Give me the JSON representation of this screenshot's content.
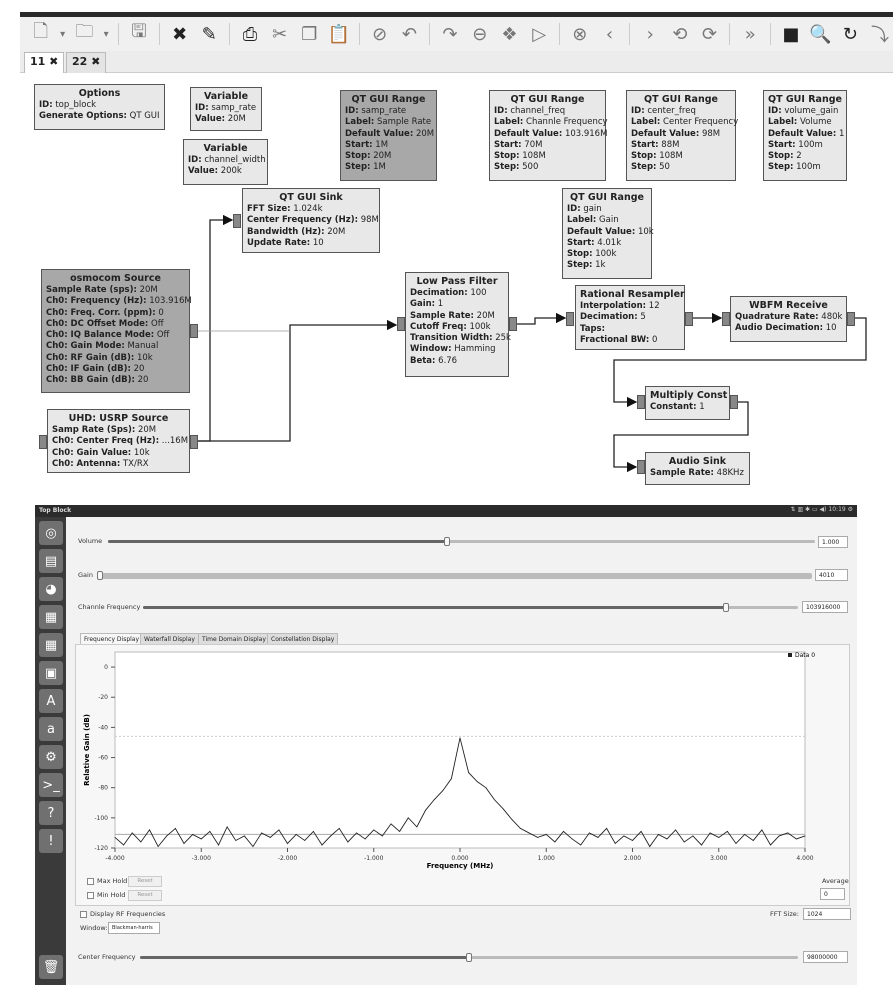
{
  "toolbar": {
    "icons": [
      "new-file-icon",
      "dropdown-icon",
      "open-folder-icon",
      "dropdown-icon",
      "save-icon",
      "close-icon",
      "edit-pencil-icon",
      "print-icon",
      "cut-icon",
      "copy-icon",
      "paste-icon",
      "delete-icon",
      "undo-icon",
      "redo-icon",
      "disable-icon",
      "bypass-icon",
      "run-icon",
      "stop-icon",
      "back-icon",
      "forward-icon",
      "rotate-left-icon",
      "rotate-right-icon",
      "fast-forward-icon",
      "terminal-icon",
      "find-icon",
      "reload-icon",
      "arrow-down-icon"
    ]
  },
  "tabs": [
    {
      "label": "11 ✖"
    },
    {
      "label": "22 ✖"
    }
  ],
  "blocks": {
    "options": {
      "title": "Options",
      "rows": [
        [
          "ID:",
          "top_block"
        ],
        [
          "Generate Options:",
          "QT GUI"
        ]
      ]
    },
    "var_samp": {
      "title": "Variable",
      "rows": [
        [
          "ID:",
          "samp_rate"
        ],
        [
          "Value:",
          "20M"
        ]
      ]
    },
    "var_cw": {
      "title": "Variable",
      "rows": [
        [
          "ID:",
          "channel_width"
        ],
        [
          "Value:",
          "200k"
        ]
      ]
    },
    "range_samp": {
      "title": "QT GUI Range",
      "rows": [
        [
          "ID:",
          "samp_rate"
        ],
        [
          "Label:",
          "Sample Rate"
        ],
        [
          "Default Value:",
          "20M"
        ],
        [
          "Start:",
          "1M"
        ],
        [
          "Stop:",
          "20M"
        ],
        [
          "Step:",
          "1M"
        ]
      ]
    },
    "range_cf": {
      "title": "QT GUI Range",
      "rows": [
        [
          "ID:",
          "channel_freq"
        ],
        [
          "Label:",
          "Channle Frequency"
        ],
        [
          "Default Value:",
          "103.916M"
        ],
        [
          "Start:",
          "70M"
        ],
        [
          "Stop:",
          "108M"
        ],
        [
          "Step:",
          "500"
        ]
      ]
    },
    "range_center": {
      "title": "QT GUI Range",
      "rows": [
        [
          "ID:",
          "center_freq"
        ],
        [
          "Label:",
          "Center Frequency"
        ],
        [
          "Default Value:",
          "98M"
        ],
        [
          "Start:",
          "88M"
        ],
        [
          "Stop:",
          "108M"
        ],
        [
          "Step:",
          "50"
        ]
      ]
    },
    "range_vol": {
      "title": "QT GUI Range",
      "rows": [
        [
          "ID:",
          "volume_gain"
        ],
        [
          "Label:",
          "Volume"
        ],
        [
          "Default Value:",
          "1"
        ],
        [
          "Start:",
          "100m"
        ],
        [
          "Stop:",
          "2"
        ],
        [
          "Step:",
          "100m"
        ]
      ]
    },
    "range_gain": {
      "title": "QT GUI Range",
      "rows": [
        [
          "ID:",
          "gain"
        ],
        [
          "Label:",
          "Gain"
        ],
        [
          "Default Value:",
          "10k"
        ],
        [
          "Start:",
          "4.01k"
        ],
        [
          "Stop:",
          "100k"
        ],
        [
          "Step:",
          "1k"
        ]
      ]
    },
    "sink": {
      "title": "QT GUI Sink",
      "rows": [
        [
          "FFT Size:",
          "1.024k"
        ],
        [
          "Center Frequency (Hz):",
          "98M"
        ],
        [
          "Bandwidth (Hz):",
          "20M"
        ],
        [
          "Update Rate:",
          "10"
        ]
      ]
    },
    "osmo": {
      "title": "osmocom Source",
      "rows": [
        [
          "Sample Rate (sps):",
          "20M"
        ],
        [
          "Ch0: Frequency (Hz):",
          "103.916M"
        ],
        [
          "Ch0: Freq. Corr. (ppm):",
          "0"
        ],
        [
          "Ch0: DC Offset Mode:",
          "Off"
        ],
        [
          "Ch0: IQ Balance Mode:",
          "Off"
        ],
        [
          "Ch0: Gain Mode:",
          "Manual"
        ],
        [
          "Ch0: RF Gain (dB):",
          "10k"
        ],
        [
          "Ch0: IF Gain (dB):",
          "20"
        ],
        [
          "Ch0: BB Gain (dB):",
          "20"
        ]
      ]
    },
    "uhd": {
      "title": "UHD: USRP Source",
      "rows": [
        [
          "Samp Rate (Sps):",
          "20M"
        ],
        [
          "Ch0: Center Freq (Hz):",
          "...16M"
        ],
        [
          "Ch0: Gain Value:",
          "10k"
        ],
        [
          "Ch0: Antenna:",
          "TX/RX"
        ]
      ]
    },
    "lpf": {
      "title": "Low Pass Filter",
      "rows": [
        [
          "Decimation:",
          "100"
        ],
        [
          "Gain:",
          "1"
        ],
        [
          "Sample Rate:",
          "20M"
        ],
        [
          "Cutoff Freq:",
          "100k"
        ],
        [
          "Transition Width:",
          "25k"
        ],
        [
          "Window:",
          "Hamming"
        ],
        [
          "Beta:",
          "6.76"
        ]
      ]
    },
    "rr": {
      "title": "Rational Resampler",
      "rows": [
        [
          "Interpolation:",
          "12"
        ],
        [
          "Decimation:",
          "5"
        ],
        [
          "Taps:",
          ""
        ],
        [
          "Fractional BW:",
          "0"
        ]
      ]
    },
    "wbfm": {
      "title": "WBFM Receive",
      "rows": [
        [
          "Quadrature Rate:",
          "480k"
        ],
        [
          "Audio Decimation:",
          "10"
        ]
      ]
    },
    "mult": {
      "title": "Multiply Const",
      "rows": [
        [
          "Constant:",
          "1"
        ]
      ]
    },
    "audio": {
      "title": "Audio Sink",
      "rows": [
        [
          "Sample Rate:",
          "48KHz"
        ]
      ]
    }
  },
  "app": {
    "title": "Top Block",
    "systray": "⇅ ▥ ✱ ▭ ◀) 10:19 ⚙",
    "launcher_icons": [
      "ubuntu-icon",
      "files-icon",
      "firefox-icon",
      "writer-icon",
      "calc-icon",
      "impress-icon",
      "software-center-icon",
      "amazon-icon",
      "settings-icon",
      "terminal-icon",
      "help-icon",
      "unknown-icon",
      "trash-icon"
    ],
    "volume": {
      "label": "Volume",
      "value": "1.000",
      "fraction": 0.48
    },
    "gain": {
      "label": "Gain",
      "value": "4010",
      "fraction": 0.0
    },
    "channel_freq": {
      "label": "Channle Frequency",
      "value": "103916000",
      "fraction": 0.89
    },
    "plot_tabs": [
      "Frequency Display",
      "Waterfall Display",
      "Time Domain Display",
      "Constellation Display"
    ],
    "max_hold": "Max Hold",
    "min_hold": "Min Hold",
    "reset": "Reset",
    "average_label": "Average",
    "average_value": "0",
    "display_rf": "Display RF Frequencies",
    "fft_label": "FFT Size:",
    "fft_value": "1024",
    "window_label": "Window:",
    "window_value": "Blackman-harris",
    "center_freq": {
      "label": "Center Frequency",
      "value": "98000000",
      "fraction": 0.5
    }
  },
  "chart_data": {
    "type": "line",
    "xlabel": "Frequency (MHz)",
    "ylabel": "Relative Gain (dB)",
    "xlim": [
      -4,
      4
    ],
    "ylim": [
      -120,
      10
    ],
    "xticks": [
      "-4.000",
      "-3.000",
      "-2.000",
      "-1.000",
      "0.000",
      "1.000",
      "2.000",
      "3.000",
      "4.000"
    ],
    "yticks": [
      "0",
      "-20",
      "-40",
      "-60",
      "-80",
      "-100",
      "-120"
    ],
    "legend": "top-right",
    "grid": false,
    "series": [
      {
        "name": "Data 0",
        "x": [
          -4.0,
          -3.9,
          -3.8,
          -3.7,
          -3.6,
          -3.5,
          -3.4,
          -3.3,
          -3.2,
          -3.1,
          -3.0,
          -2.9,
          -2.8,
          -2.7,
          -2.6,
          -2.5,
          -2.4,
          -2.3,
          -2.2,
          -2.1,
          -2.0,
          -1.9,
          -1.8,
          -1.7,
          -1.6,
          -1.5,
          -1.4,
          -1.3,
          -1.2,
          -1.1,
          -1.0,
          -0.9,
          -0.8,
          -0.7,
          -0.6,
          -0.5,
          -0.4,
          -0.3,
          -0.2,
          -0.1,
          0.0,
          0.1,
          0.2,
          0.3,
          0.4,
          0.5,
          0.6,
          0.7,
          0.8,
          0.9,
          1.0,
          1.1,
          1.2,
          1.3,
          1.4,
          1.5,
          1.6,
          1.7,
          1.8,
          1.9,
          2.0,
          2.1,
          2.2,
          2.3,
          2.4,
          2.5,
          2.6,
          2.7,
          2.8,
          2.9,
          3.0,
          3.1,
          3.2,
          3.3,
          3.4,
          3.5,
          3.6,
          3.7,
          3.8,
          3.9,
          4.0
        ],
        "y": [
          -113,
          -118,
          -110,
          -116,
          -108,
          -119,
          -112,
          -107,
          -117,
          -111,
          -114,
          -109,
          -118,
          -106,
          -115,
          -112,
          -119,
          -110,
          -113,
          -108,
          -117,
          -111,
          -115,
          -109,
          -118,
          -112,
          -107,
          -116,
          -110,
          -114,
          -108,
          -112,
          -104,
          -109,
          -100,
          -106,
          -95,
          -88,
          -82,
          -74,
          -47,
          -70,
          -76,
          -80,
          -88,
          -94,
          -101,
          -107,
          -110,
          -113,
          -111,
          -116,
          -109,
          -114,
          -118,
          -110,
          -113,
          -107,
          -117,
          -112,
          -115,
          -109,
          -119,
          -111,
          -114,
          -108,
          -116,
          -112,
          -118,
          -110,
          -113,
          -109,
          -117,
          -111,
          -115,
          -108,
          -118,
          -112,
          -110,
          -114,
          -112
        ]
      }
    ]
  }
}
